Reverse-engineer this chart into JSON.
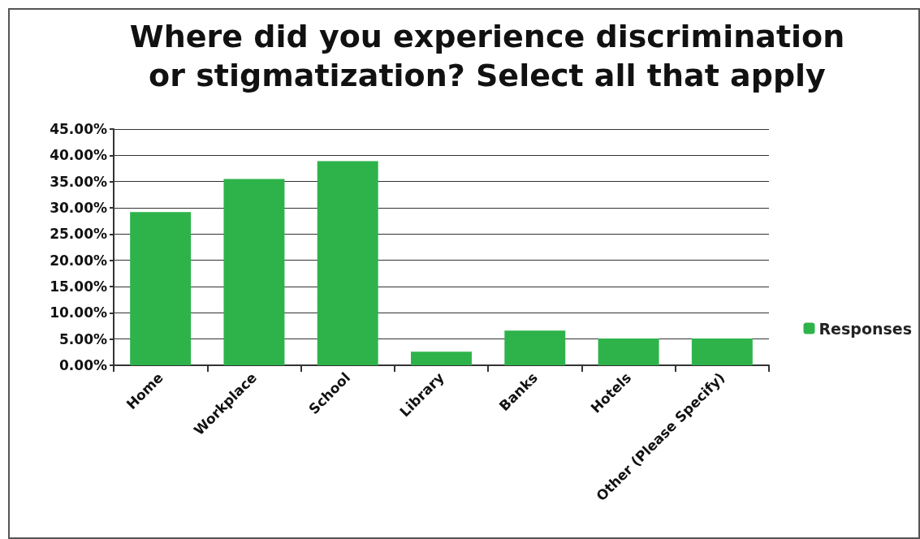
{
  "chart_data": {
    "type": "bar",
    "title": "Where did you experience discrimination\nor stigmatization? Select all that apply",
    "categories": [
      "Home",
      "Workplace",
      "School",
      "Library",
      "Banks",
      "Hotels",
      "Other (Please Specify)"
    ],
    "series": [
      {
        "name": "Responses",
        "color": "#2eb34b",
        "values": [
          29.2,
          35.5,
          38.9,
          2.6,
          6.6,
          5.1,
          5.1
        ]
      }
    ],
    "ylim": [
      0,
      45
    ],
    "yticks": [
      {
        "value": 0,
        "label": "0.00%"
      },
      {
        "value": 5,
        "label": "5.00%"
      },
      {
        "value": 10,
        "label": "10.00%"
      },
      {
        "value": 15,
        "label": "15.00%"
      },
      {
        "value": 20,
        "label": "20.00%"
      },
      {
        "value": 25,
        "label": "25.00%"
      },
      {
        "value": 30,
        "label": "30.00%"
      },
      {
        "value": 35,
        "label": "35.00%"
      },
      {
        "value": 40,
        "label": "40.00%"
      },
      {
        "value": 45,
        "label": "45.00%"
      }
    ],
    "grid": "y",
    "legend": "right"
  }
}
